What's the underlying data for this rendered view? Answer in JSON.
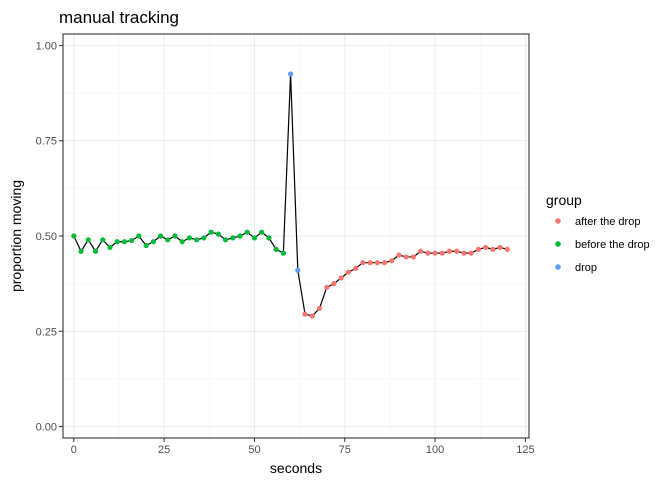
{
  "chart_data": {
    "type": "scatter",
    "title": "manual tracking",
    "xlabel": "seconds",
    "ylabel": "proportion moving",
    "xlim": [
      -3,
      126
    ],
    "ylim": [
      -0.03,
      1.03
    ],
    "x_ticks": [
      0,
      25,
      50,
      75,
      100,
      125
    ],
    "x_tick_labels": [
      "0",
      "25",
      "50",
      "75",
      "100",
      "125"
    ],
    "y_ticks": [
      0,
      0.25,
      0.5,
      0.75,
      1.0
    ],
    "y_tick_labels": [
      "0.00",
      "0.25",
      "0.50",
      "0.75",
      "1.00"
    ],
    "grid": true,
    "line_color": "#000000",
    "legend": {
      "title": "group",
      "position": "right",
      "entries": [
        {
          "label": "after the drop",
          "color": "#F8766D"
        },
        {
          "label": "before the drop",
          "color": "#00BA38"
        },
        {
          "label": "drop",
          "color": "#619CFF"
        }
      ]
    },
    "series": [
      {
        "name": "before the drop",
        "color": "#00BA38",
        "x": [
          0,
          2,
          4,
          6,
          8,
          10,
          12,
          14,
          16,
          18,
          20,
          22,
          24,
          26,
          28,
          30,
          32,
          34,
          36,
          38,
          40,
          42,
          44,
          46,
          48,
          50,
          52,
          54,
          56,
          58
        ],
        "y": [
          0.5,
          0.46,
          0.49,
          0.46,
          0.49,
          0.47,
          0.485,
          0.485,
          0.488,
          0.5,
          0.475,
          0.485,
          0.5,
          0.49,
          0.5,
          0.485,
          0.495,
          0.49,
          0.495,
          0.51,
          0.505,
          0.49,
          0.495,
          0.5,
          0.51,
          0.495,
          0.51,
          0.495,
          0.465,
          0.455
        ]
      },
      {
        "name": "drop",
        "color": "#619CFF",
        "x": [
          60,
          62
        ],
        "y": [
          0.925,
          0.41
        ]
      },
      {
        "name": "after the drop",
        "color": "#F8766D",
        "x": [
          64,
          66,
          68,
          70,
          72,
          74,
          76,
          78,
          80,
          82,
          84,
          86,
          88,
          90,
          92,
          94,
          96,
          98,
          100,
          102,
          104,
          106,
          108,
          110,
          112,
          114,
          116,
          118,
          120
        ],
        "y": [
          0.295,
          0.29,
          0.31,
          0.365,
          0.375,
          0.39,
          0.405,
          0.415,
          0.43,
          0.43,
          0.43,
          0.43,
          0.435,
          0.45,
          0.445,
          0.445,
          0.46,
          0.455,
          0.455,
          0.455,
          0.46,
          0.46,
          0.455,
          0.455,
          0.465,
          0.47,
          0.465,
          0.47,
          0.465
        ]
      }
    ]
  }
}
